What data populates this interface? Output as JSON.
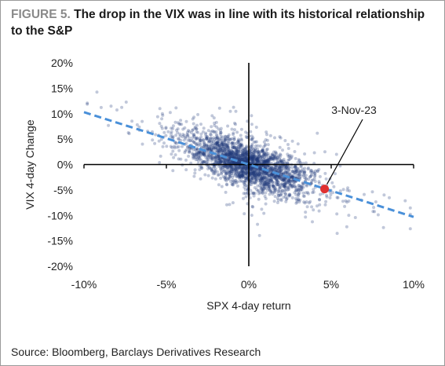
{
  "figure": {
    "label": "FIGURE 5.",
    "title": "The drop in the VIX was in line with its historical relationship to the S&P",
    "source": "Source: Bloomberg, Barclays Derivatives Research"
  },
  "chart_data": {
    "type": "scatter",
    "xlabel": "SPX 4-day return",
    "ylabel": "VIX 4-day Change",
    "xlim": [
      -0.1,
      0.1
    ],
    "ylim": [
      -0.2,
      0.2
    ],
    "x_ticks": [
      "-10%",
      "-5%",
      "0%",
      "5%",
      "10%"
    ],
    "y_ticks": [
      "20%",
      "15%",
      "10%",
      "5%",
      "0%",
      "-5%",
      "-10%",
      "-15%",
      "-20%"
    ],
    "grid": false,
    "scatter_color": "#1f3b7a",
    "fit_line": {
      "slope": -1.03,
      "intercept": 0.0,
      "x_range": [
        -0.1,
        0.1
      ],
      "color": "#4a90d9",
      "style": "dashed"
    },
    "highlight": {
      "label": "3-Nov-23",
      "x": 0.046,
      "y": -0.048,
      "color": "#e03030"
    },
    "point_cloud_note_count": 2500
  }
}
